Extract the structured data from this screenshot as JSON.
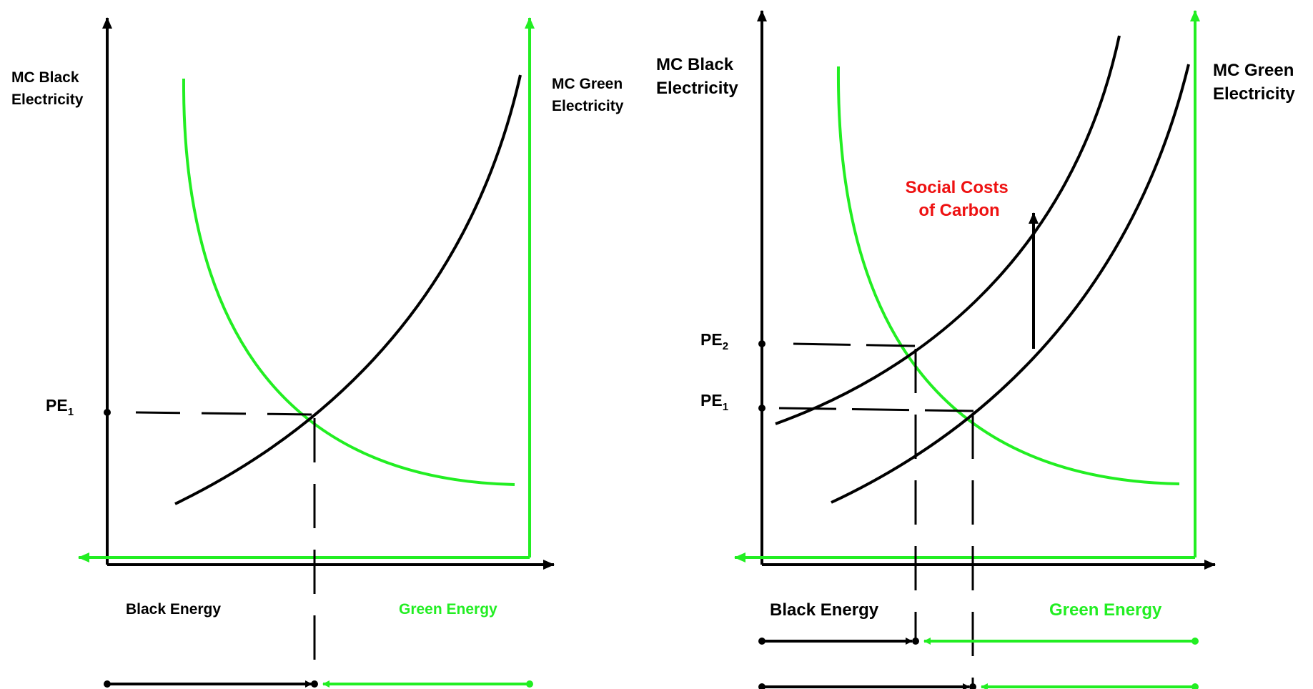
{
  "colors": {
    "black": "#000000",
    "green": "#22ee22",
    "social_cost": "#ee1111"
  },
  "left_panel": {
    "y_axis_label_line1": "MC Black",
    "y_axis_label_line2": "Electricity",
    "right_axis_label_line1": "MC Green",
    "right_axis_label_line2": "Electricity",
    "x_label_black": "Black Energy",
    "x_label_green": "Green Energy",
    "price_label": {
      "main": "PE",
      "sub": "1"
    }
  },
  "right_panel": {
    "y_axis_label_line1": "MC Black",
    "y_axis_label_line2": "Electricity",
    "right_axis_label_line1": "MC Green",
    "right_axis_label_line2": "Electricity",
    "x_label_black": "Black Energy",
    "x_label_green": "Green Energy",
    "price_label_2": {
      "main": "PE",
      "sub": "2"
    },
    "price_label_1": {
      "main": "PE",
      "sub": "1"
    },
    "annotation_line1": "Social Costs",
    "annotation_line2": "of Carbon"
  }
}
